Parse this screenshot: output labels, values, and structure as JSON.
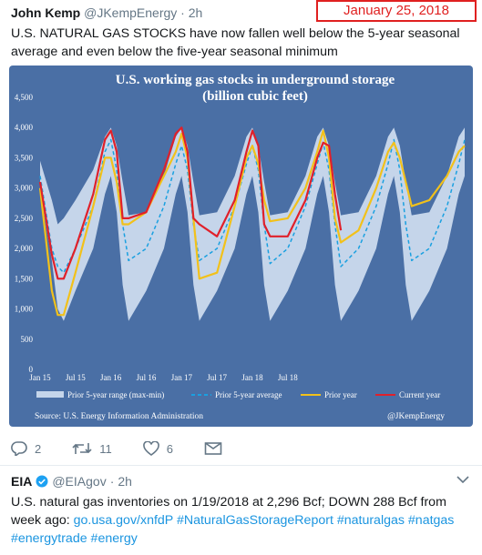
{
  "tweet1": {
    "name": "John Kemp",
    "handle": "@JKempEnergy",
    "separator": "·",
    "time": "2h",
    "text": "U.S. NATURAL GAS STOCKS have now fallen well below the 5-year seasonal average and even below the five-year seasonal minimum",
    "actions": {
      "replies": "2",
      "retweets": "11",
      "likes": "6"
    }
  },
  "annotation": {
    "date": "January 25, 2018"
  },
  "tweet2": {
    "name": "EIA",
    "verified": true,
    "handle": "@EIAgov",
    "separator": "·",
    "time": "2h",
    "text_plain": "U.S. natural gas inventories on 1/19/2018 at 2,296 Bcf; DOWN 288 Bcf from week ago: ",
    "link": "go.usa.gov/xnfdP",
    "hashtags": "#NaturalGasStorageReport #naturalgas #natgas #energytrade #energy"
  },
  "colors": {
    "chart_bg": "#4a6fa5",
    "range_band": "#c5d5ea",
    "avg_line": "#1aa0e0",
    "prior_year_line": "#f2c11a",
    "current_year_line": "#e0202a",
    "link": "#1b95e0",
    "annotation": "#e02020"
  },
  "chart_data": {
    "type": "line",
    "title": "U.S. working gas stocks in underground storage",
    "subtitle": "(billion cubic feet)",
    "source": "Source: U.S. Energy Information Administration",
    "credit": "@JKempEnergy",
    "ylim": [
      0,
      4500
    ],
    "yticks": [
      "0",
      "500",
      "1,000",
      "1,500",
      "2,000",
      "2,500",
      "3,000",
      "3,500",
      "4,000",
      "4,500"
    ],
    "xticks": [
      "Jan 15",
      "Jul 15",
      "Jan 16",
      "Jul 16",
      "Jan 17",
      "Jul 17",
      "Jan 18",
      "Jul 18"
    ],
    "legend": [
      "Prior 5-year range (max-min)",
      "Prior 5-year average",
      "Prior year",
      "Current year"
    ],
    "range_band": {
      "x": [
        0,
        2,
        3,
        4,
        6,
        9,
        11,
        12,
        13,
        14,
        15,
        18,
        21,
        23,
        24,
        25,
        26,
        27,
        30,
        33,
        35,
        36,
        37,
        38,
        39,
        42,
        45,
        47,
        48,
        49,
        50,
        51,
        54,
        57,
        59,
        60,
        61,
        62,
        63,
        66,
        69,
        71,
        72
      ],
      "max": [
        3450,
        2800,
        2400,
        2500,
        2800,
        3300,
        3850,
        4000,
        3700,
        3100,
        2550,
        2600,
        3200,
        3850,
        4000,
        3700,
        3100,
        2550,
        2600,
        3200,
        3850,
        4000,
        3700,
        3100,
        2550,
        2600,
        3200,
        3850,
        4000,
        3700,
        3100,
        2550,
        2600,
        3200,
        3850,
        4000,
        3700,
        3100,
        2550,
        2600,
        3200,
        3850,
        4000
      ],
      "min": [
        3000,
        1800,
        1000,
        800,
        1300,
        2000,
        2900,
        3200,
        2600,
        1400,
        800,
        1300,
        2000,
        2900,
        3200,
        2600,
        1400,
        800,
        1300,
        2000,
        2900,
        3200,
        2600,
        1400,
        800,
        1300,
        2000,
        2900,
        3200,
        2600,
        1400,
        800,
        1300,
        2000,
        2900,
        3200,
        2600,
        1400,
        800,
        1300,
        2000,
        2900,
        3200
      ]
    },
    "series": [
      {
        "name": "Prior 5-year average",
        "x": [
          0,
          2,
          3,
          4,
          6,
          9,
          11,
          12,
          13,
          14,
          15,
          18,
          21,
          23,
          24,
          25,
          26,
          27,
          30,
          33,
          35,
          36,
          37,
          38,
          39,
          42,
          45,
          47,
          48,
          49,
          50,
          51,
          54,
          57,
          59,
          60,
          61,
          62,
          63,
          66,
          69,
          71,
          72
        ],
        "values": [
          3200,
          2000,
          1700,
          1600,
          2000,
          2700,
          3600,
          3800,
          3300,
          2400,
          1800,
          2000,
          2700,
          3400,
          3700,
          3300,
          2400,
          1800,
          2000,
          2700,
          3400,
          3700,
          3300,
          2400,
          1750,
          2000,
          2700,
          3400,
          3750,
          3300,
          2400,
          1700,
          2000,
          2700,
          3400,
          3800,
          3300,
          2400,
          1800,
          2000,
          2700,
          3400,
          3800
        ]
      },
      {
        "name": "Prior year",
        "x": [
          0,
          2,
          3,
          4,
          6,
          9,
          11,
          12,
          13,
          14,
          15,
          18,
          21,
          23,
          24,
          25,
          26,
          27,
          30,
          33,
          35,
          36,
          37,
          38,
          39,
          42,
          45,
          47,
          48,
          49,
          50,
          51,
          54,
          57,
          59,
          60,
          61,
          62,
          63,
          66,
          69,
          71,
          72
        ],
        "values": [
          3000,
          1300,
          900,
          900,
          1600,
          2700,
          3500,
          3500,
          3100,
          2400,
          2400,
          2600,
          3200,
          3600,
          3900,
          3500,
          2500,
          1500,
          1600,
          2700,
          3500,
          3700,
          3400,
          2800,
          2450,
          2500,
          3000,
          3600,
          3950,
          3500,
          2500,
          2100,
          2300,
          3000,
          3600,
          3750,
          3500,
          3100,
          2700,
          2800,
          3200,
          3600,
          3700
        ]
      },
      {
        "name": "Current year",
        "x": [
          0,
          2,
          3,
          4,
          6,
          9,
          11,
          12,
          13,
          14,
          15,
          18,
          21,
          23,
          24,
          25,
          26,
          27,
          30,
          33,
          35,
          36,
          37,
          38,
          39,
          42,
          45,
          47,
          48,
          49,
          50,
          51
        ],
        "values": [
          3100,
          1900,
          1500,
          1500,
          2000,
          2900,
          3800,
          3950,
          3600,
          2500,
          2500,
          2600,
          3300,
          3900,
          4000,
          3600,
          2500,
          2400,
          2200,
          2800,
          3600,
          3950,
          3700,
          2400,
          2200,
          2200,
          2800,
          3500,
          3750,
          3700,
          2900,
          2300
        ]
      }
    ]
  }
}
